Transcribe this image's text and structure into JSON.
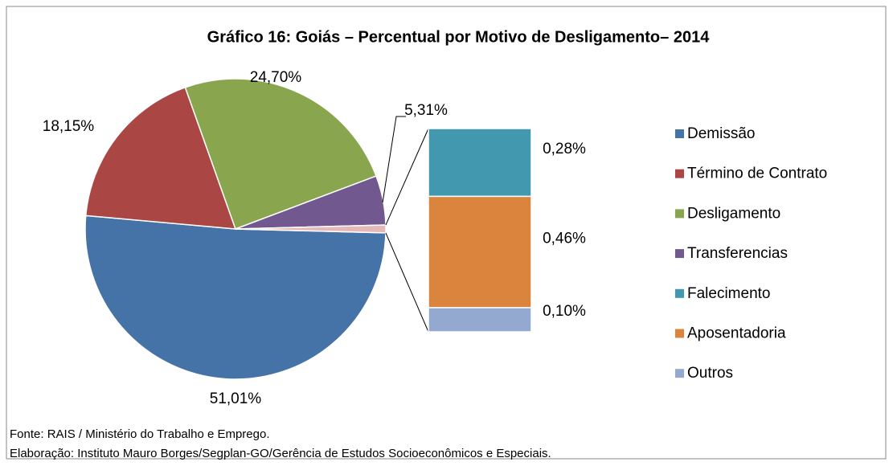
{
  "chart_data": {
    "type": "pie",
    "title": "Gráfico 16: Goiás – Percentual por Motivo de Desligamento– 2014",
    "categories": [
      "Demissão",
      "Término de Contrato",
      "Desligamento",
      "Transferencias",
      "Falecimento",
      "Aposentadoria",
      "Outros"
    ],
    "values": [
      51.01,
      18.15,
      24.7,
      5.31,
      0.28,
      0.46,
      0.1
    ],
    "value_labels": [
      "51,01%",
      "18,15%",
      "24,70%",
      "5,31%",
      "0,28%",
      "0,46%",
      "0,10%"
    ],
    "colors": [
      "#4572a7",
      "#aa4643",
      "#89a54e",
      "#71588f",
      "#4198af",
      "#db843d",
      "#93a9cf"
    ],
    "combined_color": "#e6b9b8",
    "secondary_count": 3,
    "legend": "right",
    "notes": [
      "Fonte: RAIS / Ministério do Trabalho e Emprego.",
      "Elaboração: Instituto Mauro Borges/Segplan-GO/Gerência de Estudos Socioeconômicos e Especiais."
    ]
  }
}
